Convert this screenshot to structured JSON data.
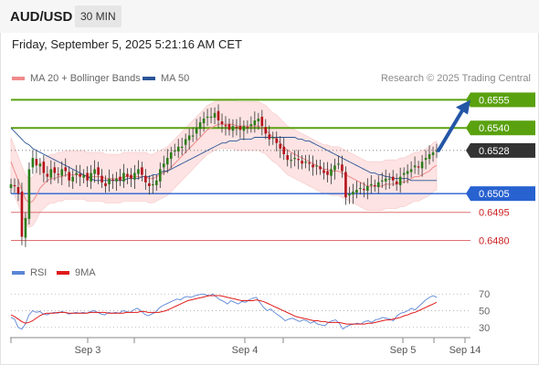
{
  "header": {
    "symbol": "AUD/USD",
    "timeframe": "30 MIN",
    "datetime": "Friday, September 5, 2025 5:21:16 AM CET"
  },
  "legend": [
    {
      "label": "MA 20 + Bollinger Bands",
      "color": "#f08a8a"
    },
    {
      "label": "MA 50",
      "color": "#2b5597"
    }
  ],
  "credit": "Research © 2025 Trading Central",
  "rsi_legend": [
    {
      "label": "RSI",
      "color": "#5b86d6"
    },
    {
      "label": "9MA",
      "color": "#e01a1a"
    }
  ],
  "colors": {
    "up": "#2c7d1a",
    "down": "#b5121b",
    "resistance": "#5aa10f",
    "pivot": "#2862d0",
    "support": "#e07070",
    "current": "#333333",
    "arrow": "#2456a6"
  },
  "chart_data": [
    {
      "type": "candlestick",
      "ylim": [
        0.6472,
        0.6562
      ],
      "x_ticks": [
        "Sep 3",
        "Sep 4",
        "Sep 5",
        "Sep 14"
      ],
      "current_price": {
        "label": "0.6528",
        "value": 0.6528
      },
      "levels": [
        {
          "label": "0.6555",
          "value": 0.6555,
          "kind": "resistance"
        },
        {
          "label": "0.6540",
          "value": 0.654,
          "kind": "resistance"
        },
        {
          "label": "0.6505",
          "value": 0.6505,
          "kind": "pivot"
        },
        {
          "label": "0.6495",
          "value": 0.6495,
          "kind": "support"
        },
        {
          "label": "0.6480",
          "value": 0.648,
          "kind": "support"
        }
      ],
      "close_path": [
        0.651,
        0.6509,
        0.6505,
        0.6482,
        0.6492,
        0.6518,
        0.6524,
        0.652,
        0.6521,
        0.6516,
        0.6514,
        0.6518,
        0.6516,
        0.6515,
        0.6518,
        0.6517,
        0.6512,
        0.6514,
        0.6516,
        0.6514,
        0.6515,
        0.6512,
        0.6516,
        0.6518,
        0.6515,
        0.6511,
        0.6509,
        0.6513,
        0.6512,
        0.6513,
        0.6512,
        0.6516,
        0.6514,
        0.6513,
        0.6516,
        0.6518,
        0.6515,
        0.6511,
        0.6509,
        0.651,
        0.6512,
        0.6518,
        0.6521,
        0.6524,
        0.6527,
        0.6528,
        0.653,
        0.653,
        0.6534,
        0.6536,
        0.6536,
        0.654,
        0.6543,
        0.6545,
        0.6546,
        0.6546,
        0.6548,
        0.6544,
        0.6542,
        0.6541,
        0.6539,
        0.6541,
        0.654,
        0.6539,
        0.6541,
        0.654,
        0.6542,
        0.6544,
        0.6545,
        0.6541,
        0.6537,
        0.6534,
        0.6535,
        0.6532,
        0.6529,
        0.6526,
        0.6523,
        0.6523,
        0.6524,
        0.6523,
        0.6521,
        0.6522,
        0.6521,
        0.6519,
        0.652,
        0.6518,
        0.6516,
        0.6515,
        0.6518,
        0.652,
        0.6521,
        0.6517,
        0.6503,
        0.6505,
        0.6506,
        0.6507,
        0.6508,
        0.6507,
        0.6509,
        0.651,
        0.6509,
        0.6511,
        0.6512,
        0.6513,
        0.6513,
        0.6512,
        0.651,
        0.6514,
        0.6516,
        0.6517,
        0.6518,
        0.652,
        0.6519,
        0.6522,
        0.6524,
        0.6526,
        0.6527,
        0.6528
      ],
      "ma20_path": [
        0.6522,
        0.6517,
        0.6512,
        0.6507,
        0.6502,
        0.65,
        0.6501,
        0.6504,
        0.6508,
        0.651,
        0.6512,
        0.6513,
        0.6513,
        0.6514,
        0.6514,
        0.6515,
        0.6515,
        0.6515,
        0.6515,
        0.6515,
        0.6515,
        0.6514,
        0.6514,
        0.6514,
        0.6514,
        0.6514,
        0.6513,
        0.6513,
        0.6513,
        0.6513,
        0.6513,
        0.6514,
        0.6514,
        0.6514,
        0.6514,
        0.6514,
        0.6514,
        0.6514,
        0.6513,
        0.6513,
        0.6514,
        0.6515,
        0.6516,
        0.6517,
        0.6519,
        0.6521,
        0.6523,
        0.6525,
        0.6527,
        0.6529,
        0.6531,
        0.6533,
        0.6535,
        0.6537,
        0.6539,
        0.654,
        0.6541,
        0.6542,
        0.6542,
        0.6542,
        0.6542,
        0.6542,
        0.6541,
        0.6541,
        0.6541,
        0.6541,
        0.6541,
        0.6541,
        0.6541,
        0.654,
        0.6539,
        0.6537,
        0.6535,
        0.6534,
        0.6532,
        0.653,
        0.6528,
        0.6527,
        0.6526,
        0.6525,
        0.6524,
        0.6523,
        0.6522,
        0.6521,
        0.652,
        0.6519,
        0.6518,
        0.6518,
        0.6517,
        0.6517,
        0.6517,
        0.6516,
        0.6515,
        0.6514,
        0.6513,
        0.6512,
        0.6511,
        0.651,
        0.6509,
        0.6509,
        0.6509,
        0.6509,
        0.6509,
        0.651,
        0.651,
        0.651,
        0.651,
        0.6511,
        0.6511,
        0.6512,
        0.6513,
        0.6514,
        0.6514,
        0.6515,
        0.6516,
        0.6517,
        0.6519,
        0.652
      ],
      "ma50_path": [
        0.654,
        0.6538,
        0.6536,
        0.6534,
        0.6532,
        0.6531,
        0.6529,
        0.6528,
        0.6527,
        0.6526,
        0.6525,
        0.6524,
        0.6523,
        0.6522,
        0.6521,
        0.652,
        0.6519,
        0.6518,
        0.6517,
        0.6516,
        0.6515,
        0.6514,
        0.6513,
        0.6512,
        0.6512,
        0.6512,
        0.6512,
        0.6512,
        0.6512,
        0.6512,
        0.6512,
        0.6512,
        0.6513,
        0.6513,
        0.6513,
        0.6513,
        0.6514,
        0.6514,
        0.6514,
        0.6515,
        0.6515,
        0.6516,
        0.6517,
        0.6517,
        0.6518,
        0.6519,
        0.652,
        0.6521,
        0.6522,
        0.6523,
        0.6524,
        0.6525,
        0.6526,
        0.6527,
        0.6528,
        0.6529,
        0.653,
        0.6531,
        0.6532,
        0.6532,
        0.6533,
        0.6533,
        0.6533,
        0.6534,
        0.6534,
        0.6534,
        0.6534,
        0.6535,
        0.6535,
        0.6535,
        0.6535,
        0.6535,
        0.6535,
        0.6535,
        0.6535,
        0.6535,
        0.6535,
        0.6535,
        0.6535,
        0.6534,
        0.6534,
        0.6533,
        0.6533,
        0.6532,
        0.6531,
        0.653,
        0.6529,
        0.6528,
        0.6527,
        0.6526,
        0.6525,
        0.6524,
        0.6523,
        0.6522,
        0.6521,
        0.652,
        0.6519,
        0.6518,
        0.6517,
        0.6516,
        0.6516,
        0.6515,
        0.6515,
        0.6514,
        0.6514,
        0.6513,
        0.6513,
        0.6513,
        0.6513,
        0.6513,
        0.6512,
        0.6512,
        0.6512,
        0.6512,
        0.6512,
        0.6512,
        0.6512,
        0.6512
      ],
      "band_width": 0.0013,
      "projection": {
        "from": 0.6528,
        "to": 0.6553
      }
    },
    {
      "type": "line",
      "title": "RSI",
      "ylim": [
        20,
        80
      ],
      "y_ticks": [
        70,
        50,
        30
      ],
      "rsi": [
        42,
        40,
        30,
        28,
        34,
        45,
        50,
        48,
        49,
        46,
        45,
        47,
        48,
        47,
        49,
        48,
        46,
        47,
        48,
        47,
        48,
        47,
        49,
        50,
        48,
        46,
        45,
        48,
        47,
        48,
        47,
        50,
        49,
        48,
        51,
        53,
        50,
        46,
        44,
        46,
        48,
        53,
        56,
        58,
        60,
        62,
        64,
        63,
        66,
        67,
        66,
        68,
        69,
        70,
        69,
        68,
        70,
        66,
        63,
        61,
        58,
        62,
        60,
        58,
        61,
        60,
        63,
        65,
        66,
        60,
        54,
        50,
        52,
        48,
        45,
        42,
        38,
        40,
        41,
        39,
        37,
        39,
        38,
        35,
        37,
        34,
        33,
        32,
        36,
        38,
        39,
        35,
        28,
        31,
        33,
        34,
        35,
        34,
        37,
        38,
        36,
        39,
        40,
        42,
        41,
        40,
        38,
        44,
        47,
        48,
        50,
        53,
        51,
        55,
        59,
        63,
        66,
        68,
        66
      ],
      "rsi_ma": [
        45,
        43,
        40,
        37,
        35,
        36,
        38,
        41,
        44,
        46,
        47,
        47,
        47,
        48,
        48,
        48,
        47,
        47,
        47,
        47,
        47,
        47,
        48,
        48,
        48,
        48,
        48,
        47,
        47,
        47,
        47,
        47,
        48,
        48,
        48,
        48,
        49,
        49,
        48,
        48,
        48,
        48,
        49,
        50,
        52,
        54,
        56,
        58,
        60,
        62,
        63,
        64,
        65,
        66,
        67,
        68,
        68,
        68,
        68,
        67,
        66,
        65,
        64,
        63,
        62,
        62,
        62,
        62,
        63,
        62,
        61,
        59,
        57,
        55,
        53,
        51,
        49,
        47,
        45,
        43,
        42,
        41,
        40,
        39,
        38,
        38,
        37,
        37,
        36,
        36,
        36,
        36,
        35,
        34,
        34,
        34,
        34,
        34,
        34,
        35,
        35,
        36,
        37,
        38,
        39,
        39,
        40,
        41,
        42,
        44,
        45,
        47,
        48,
        50,
        52,
        54,
        56,
        58,
        60
      ]
    }
  ]
}
